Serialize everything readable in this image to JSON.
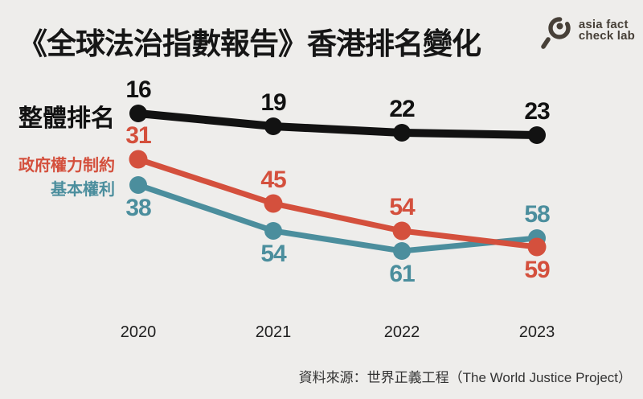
{
  "page": {
    "background_color": "#eeedeb"
  },
  "header": {
    "title": "《全球法治指數報告》香港排名變化",
    "logo": {
      "icon": "magnifier-icon",
      "line1": "asia fact",
      "line2": "check lab",
      "color": "#474038"
    }
  },
  "chart_data": {
    "type": "line",
    "title": "《全球法治指數報告》香港排名變化",
    "categories": [
      "2020",
      "2021",
      "2022",
      "2023"
    ],
    "series": [
      {
        "name": "整體排名",
        "values": [
          16,
          19,
          22,
          23
        ],
        "color": "#121212",
        "label_sides": [
          "above",
          "above",
          "above",
          "above"
        ]
      },
      {
        "name": "政府權力制約",
        "values": [
          31,
          45,
          54,
          59
        ],
        "color": "#d4503d",
        "label_sides": [
          "above",
          "above",
          "above",
          "below"
        ]
      },
      {
        "name": "基本權利",
        "values": [
          38,
          54,
          61,
          58
        ],
        "color": "#4b8e9d",
        "label_sides": [
          "below",
          "below",
          "below",
          "above"
        ]
      }
    ],
    "legend_position": "left",
    "grid": false,
    "axes": "hidden"
  },
  "footer": {
    "source": "資料來源：世界正義工程（The World Justice Project）"
  }
}
